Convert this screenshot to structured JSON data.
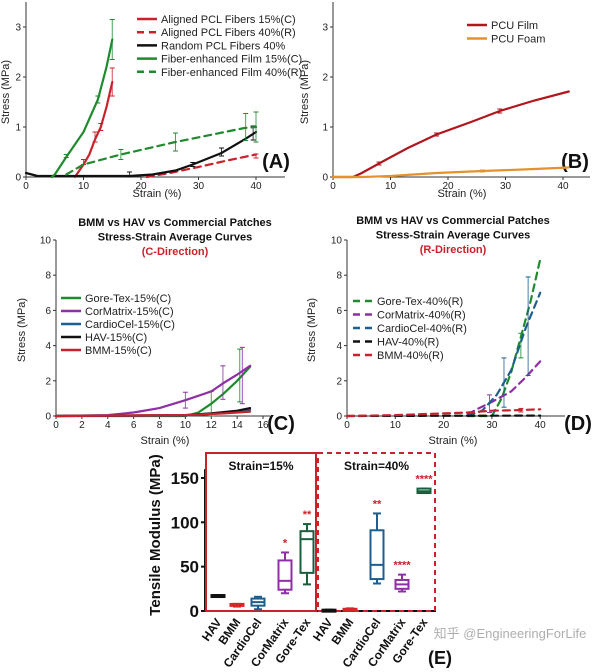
{
  "chart_data": [
    {
      "panel": "(A)",
      "type": "line",
      "xlabel": "Strain (%)",
      "ylabel": "Stress (MPa)",
      "xlim": [
        0,
        45
      ],
      "ylim": [
        0,
        3.5
      ],
      "xticks": [
        0,
        10,
        20,
        30,
        40
      ],
      "yticks": [
        0,
        1,
        2,
        3
      ],
      "legend": "top-right",
      "series": [
        {
          "name": "Aligned PCL Fibers 15%(C)",
          "color": "#c8232c",
          "dash": false,
          "points": [
            [
              8.5,
              0
            ],
            [
              10,
              0.25
            ],
            [
              11,
              0.45
            ],
            [
              12,
              0.75
            ],
            [
              13,
              1.0
            ],
            [
              14,
              1.4
            ],
            [
              15,
              1.9
            ]
          ],
          "errors": [
            [
              10,
              0.3,
              0.05
            ],
            [
              12,
              0.8,
              0.1
            ],
            [
              13,
              1.0,
              0.07
            ],
            [
              15,
              1.9,
              0.28
            ]
          ]
        },
        {
          "name": "Aligned PCL Fibers 40%(R)",
          "color": "#c8232c",
          "dash": true,
          "points": [
            [
              21,
              0
            ],
            [
              25,
              0.08
            ],
            [
              30,
              0.2
            ],
            [
              35,
              0.33
            ],
            [
              40,
              0.45
            ]
          ],
          "errors": [
            [
              40,
              0.42,
              0.04
            ]
          ]
        },
        {
          "name": "Random PCL Fibers 40%",
          "color": "#111111",
          "dash": false,
          "points": [
            [
              0,
              0.08
            ],
            [
              2,
              0.02
            ],
            [
              5,
              0.02
            ],
            [
              10,
              0.02
            ],
            [
              18,
              0.02
            ],
            [
              22,
              0.05
            ],
            [
              26,
              0.13
            ],
            [
              29,
              0.25
            ],
            [
              34,
              0.48
            ],
            [
              38,
              0.75
            ],
            [
              40,
              0.9
            ]
          ],
          "errors": [
            [
              18,
              0.05,
              0.05
            ],
            [
              29,
              0.25,
              0.04
            ],
            [
              34,
              0.5,
              0.08
            ],
            [
              39.5,
              0.88,
              0.14
            ]
          ]
        },
        {
          "name": "Fiber-enhanced Film 15%(C)",
          "color": "#1f8a2e",
          "dash": false,
          "points": [
            [
              4.5,
              0
            ],
            [
              5,
              0.05
            ],
            [
              7,
              0.4
            ],
            [
              10,
              0.9
            ],
            [
              12.5,
              1.55
            ],
            [
              14,
              2.2
            ],
            [
              15,
              2.75
            ]
          ],
          "errors": [
            [
              7,
              0.42,
              0.03
            ],
            [
              12.5,
              1.55,
              0.07
            ],
            [
              15,
              2.75,
              0.4
            ]
          ]
        },
        {
          "name": "Fiber-enhanced Film 40%(R)",
          "color": "#1f8a2e",
          "dash": true,
          "points": [
            [
              7,
              0.05
            ],
            [
              10,
              0.25
            ],
            [
              16.5,
              0.45
            ],
            [
              26,
              0.7
            ],
            [
              38,
              0.98
            ],
            [
              40,
              1.0
            ]
          ],
          "errors": [
            [
              16.5,
              0.45,
              0.1
            ],
            [
              26,
              0.7,
              0.18
            ],
            [
              38.2,
              1.0,
              0.27
            ],
            [
              40,
              1.0,
              0.3
            ]
          ]
        }
      ]
    },
    {
      "panel": "(B)",
      "type": "line",
      "xlabel": "Strain (%)",
      "ylabel": "Stress (MPa)",
      "xlim": [
        0,
        45
      ],
      "ylim": [
        0,
        3.5
      ],
      "xticks": [
        0,
        10,
        20,
        30,
        40
      ],
      "yticks": [
        0,
        1,
        2,
        3
      ],
      "legend": "top-right",
      "series": [
        {
          "name": "PCU Film",
          "color": "#b0161e",
          "dash": false,
          "points": [
            [
              0,
              0
            ],
            [
              3.5,
              0
            ],
            [
              5,
              0.08
            ],
            [
              8,
              0.27
            ],
            [
              13,
              0.58
            ],
            [
              18,
              0.85
            ],
            [
              24,
              1.1
            ],
            [
              29,
              1.32
            ],
            [
              35,
              1.53
            ],
            [
              41,
              1.71
            ]
          ],
          "errors": [
            [
              8,
              0.27,
              0.03
            ],
            [
              18,
              0.85,
              0.03
            ],
            [
              29,
              1.32,
              0.04
            ]
          ]
        },
        {
          "name": "PCU Foam",
          "color": "#e3922e",
          "dash": false,
          "points": [
            [
              0,
              0
            ],
            [
              5,
              0
            ],
            [
              10,
              0.02
            ],
            [
              18,
              0.08
            ],
            [
              26,
              0.12
            ],
            [
              33,
              0.15
            ],
            [
              41,
              0.19
            ]
          ],
          "errors": [
            [
              26,
              0.12,
              0.02
            ]
          ]
        }
      ]
    },
    {
      "panel": "(C)",
      "type": "line",
      "title": [
        "BMM vs HAV vs Commercial Patches",
        "Stress-Strain Average Curves",
        "(C-Direction)"
      ],
      "xlabel": "Strain (%)",
      "ylabel": "Stress (MPa)",
      "xlim": [
        0,
        16.5
      ],
      "ylim": [
        0,
        10
      ],
      "xticks": [
        0,
        2,
        4,
        6,
        8,
        10,
        12,
        14,
        16
      ],
      "yticks": [
        0,
        2,
        4,
        6,
        8,
        10
      ],
      "legend": "center-left",
      "series": [
        {
          "name": "Gore-Tex-15%(C)",
          "color": "#1f8a2e",
          "dash": false,
          "points": [
            [
              0,
              0
            ],
            [
              10,
              0
            ],
            [
              11,
              0.2
            ],
            [
              12,
              0.7
            ],
            [
              13,
              1.3
            ],
            [
              14,
              2.0
            ],
            [
              15,
              2.8
            ]
          ],
          "errors": [
            [
              12,
              0.7,
              0.7
            ],
            [
              14.2,
              2.3,
              1.5
            ]
          ]
        },
        {
          "name": "CorMatrix-15%(C)",
          "color": "#8e2fa6",
          "dash": false,
          "points": [
            [
              0,
              0
            ],
            [
              4,
              0.05
            ],
            [
              6,
              0.2
            ],
            [
              8,
              0.45
            ],
            [
              10,
              0.9
            ],
            [
              12,
              1.4
            ],
            [
              13,
              1.9
            ],
            [
              14,
              2.35
            ],
            [
              15,
              2.85
            ]
          ],
          "errors": [
            [
              10,
              0.9,
              0.45
            ],
            [
              12.9,
              1.9,
              0.95
            ],
            [
              14.4,
              2.3,
              1.6
            ]
          ]
        },
        {
          "name": "CardioCel-15%(C)",
          "color": "#1d5f8f",
          "dash": false,
          "points": [
            [
              0,
              0
            ],
            [
              10,
              0.03
            ],
            [
              12,
              0.12
            ],
            [
              14,
              0.25
            ],
            [
              15,
              0.35
            ]
          ],
          "errors": []
        },
        {
          "name": "HAV-15%(C)",
          "color": "#111111",
          "dash": false,
          "points": [
            [
              0,
              0
            ],
            [
              10,
              0.05
            ],
            [
              12,
              0.15
            ],
            [
              14,
              0.3
            ],
            [
              15,
              0.45
            ]
          ],
          "errors": []
        },
        {
          "name": "BMM-15%(C)",
          "color": "#c8232c",
          "dash": false,
          "points": [
            [
              0,
              0
            ],
            [
              10,
              0.05
            ],
            [
              13,
              0.15
            ],
            [
              15,
              0.25
            ]
          ],
          "errors": []
        }
      ]
    },
    {
      "panel": "(D)",
      "type": "line",
      "title": [
        "BMM vs HAV vs Commercial Patches",
        "Stress-Strain Average Curves",
        "(R-Direction)"
      ],
      "xlabel": "Strain (%)",
      "ylabel": "Stress (MPa)",
      "xlim": [
        0,
        45
      ],
      "ylim": [
        0,
        10
      ],
      "xticks": [
        0,
        10,
        20,
        30,
        40
      ],
      "yticks": [
        0,
        2,
        4,
        6,
        8,
        10
      ],
      "legend": "center-left",
      "series": [
        {
          "name": "Gore-Tex-40%(R)",
          "color": "#1f8a2e",
          "dash": true,
          "points": [
            [
              25,
              0
            ],
            [
              30,
              0
            ],
            [
              32,
              1
            ],
            [
              34,
              2.5
            ],
            [
              36,
              4.5
            ],
            [
              38,
              6.5
            ],
            [
              40,
              8.9
            ]
          ],
          "errors": [
            [
              36,
              4,
              0.7
            ]
          ]
        },
        {
          "name": "CorMatrix-40%(R)",
          "color": "#8e2fa6",
          "dash": true,
          "points": [
            [
              25,
              0.1
            ],
            [
              27,
              0.4
            ],
            [
              30,
              0.8
            ],
            [
              34,
              1.4
            ],
            [
              37,
              2.2
            ],
            [
              40,
              3.1
            ]
          ],
          "errors": [
            [
              29.5,
              0.7,
              0.5
            ]
          ]
        },
        {
          "name": "CardioCel-40%(R)",
          "color": "#1d5f8f",
          "dash": true,
          "points": [
            [
              25,
              0
            ],
            [
              28,
              0.3
            ],
            [
              31,
              1.2
            ],
            [
              34,
              2.6
            ],
            [
              37,
              5
            ],
            [
              40,
              7
            ]
          ],
          "errors": [
            [
              32.5,
              1.9,
              1.4
            ],
            [
              37.5,
              5.1,
              2.8
            ]
          ]
        },
        {
          "name": "HAV-40%(R)",
          "color": "#111111",
          "dash": true,
          "points": [
            [
              0,
              0
            ],
            [
              40,
              0.02
            ]
          ],
          "errors": []
        },
        {
          "name": "BMM-40%(R)",
          "color": "#c8232c",
          "dash": true,
          "points": [
            [
              0,
              0
            ],
            [
              10,
              0.05
            ],
            [
              20,
              0.15
            ],
            [
              25,
              0.2
            ],
            [
              30,
              0.3
            ],
            [
              35,
              0.33
            ],
            [
              40,
              0.38
            ]
          ],
          "errors": [
            [
              36,
              0.33,
              0.1
            ]
          ]
        }
      ]
    },
    {
      "panel": "(E)",
      "type": "box",
      "ylabel": "Tensile Modulus (MPa)",
      "ylim": [
        0,
        165
      ],
      "yticks": [
        0,
        50,
        100,
        150
      ],
      "groups": [
        {
          "label": "Strain=15%",
          "border": "solid",
          "color": "#c8232c",
          "items": [
            {
              "category": "HAV",
              "color": "#111111",
              "min": 16,
              "q1": 16,
              "median": 17,
              "q3": 18,
              "max": 18,
              "sig": ""
            },
            {
              "category": "BMM",
              "color": "#d62728",
              "min": 5,
              "q1": 6,
              "median": 7,
              "q3": 8,
              "max": 8,
              "sig": ""
            },
            {
              "category": "CardioCel",
              "color": "#1d5f8f",
              "min": 2,
              "q1": 6,
              "median": 10,
              "q3": 14,
              "max": 16,
              "sig": ""
            },
            {
              "category": "CorMatrix",
              "color": "#8e2fa6",
              "min": 20,
              "q1": 24,
              "median": 34,
              "q3": 57,
              "max": 66,
              "sig": "*"
            },
            {
              "category": "Gore-Tex",
              "color": "#1a5e3c",
              "min": 30,
              "q1": 43,
              "median": 81,
              "q3": 90,
              "max": 98,
              "sig": "**"
            }
          ]
        },
        {
          "label": "Strain=40%",
          "border": "dashed",
          "color": "#c8232c",
          "items": [
            {
              "category": "HAV",
              "color": "#111111",
              "min": 0.5,
              "q1": 0.5,
              "median": 1,
              "q3": 1.5,
              "max": 1.5,
              "sig": ""
            },
            {
              "category": "BMM",
              "color": "#d62728",
              "min": 1,
              "q1": 1.5,
              "median": 2,
              "q3": 2.5,
              "max": 3,
              "sig": ""
            },
            {
              "category": "CardioCel",
              "color": "#1d5f8f",
              "min": 31,
              "q1": 36,
              "median": 52,
              "q3": 91,
              "max": 110,
              "sig": "**"
            },
            {
              "category": "CorMatrix",
              "color": "#8e2fa6",
              "min": 22,
              "q1": 25,
              "median": 30,
              "q3": 35,
              "max": 41,
              "sig": "****"
            },
            {
              "category": "Gore-Tex",
              "color": "#1a5e3c",
              "min": 133,
              "q1": 133,
              "median": 135,
              "q3": 138,
              "max": 138,
              "sig": "****"
            }
          ]
        }
      ]
    }
  ],
  "watermark": "知乎 @EngineeringForLife"
}
